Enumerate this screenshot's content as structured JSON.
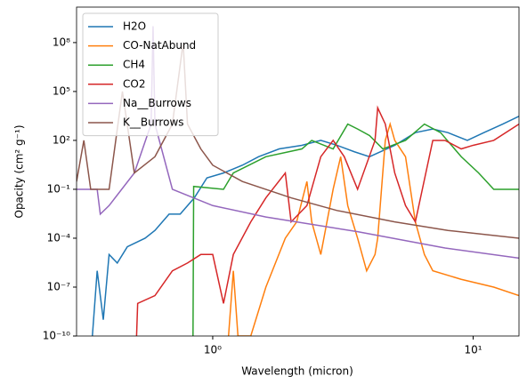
{
  "chart_data": {
    "type": "line",
    "xlabel": "Wavelength (micron)",
    "ylabel": "Opacity (cm² g⁻¹)",
    "xscale": "log",
    "yscale": "log",
    "xlim": [
      0.3,
      15
    ],
    "ylim": [
      1e-10,
      15000000000.0
    ],
    "xticks": [
      {
        "value": 1,
        "label": "10⁰"
      },
      {
        "value": 10,
        "label": "10¹"
      }
    ],
    "yticks": [
      {
        "value": 1e-10,
        "label": "10⁻¹⁰"
      },
      {
        "value": 1e-07,
        "label": "10⁻⁷"
      },
      {
        "value": 0.0001,
        "label": "10⁻⁴"
      },
      {
        "value": 0.1,
        "label": "10⁻¹"
      },
      {
        "value": 100,
        "label": "10²"
      },
      {
        "value": 100000,
        "label": "10⁵"
      },
      {
        "value": 100000000,
        "label": "10⁸"
      }
    ],
    "legend": "upper left",
    "series": [
      {
        "name": "H2O",
        "color": "#1f77b4",
        "x": [
          0.345,
          0.36,
          0.38,
          0.4,
          0.43,
          0.47,
          0.55,
          0.6,
          0.68,
          0.75,
          0.85,
          0.95,
          1.1,
          1.3,
          1.5,
          1.8,
          2.2,
          2.6,
          3.0,
          3.5,
          4.0,
          5.0,
          6.0,
          7.0,
          8.0,
          9.5,
          11,
          13,
          15
        ],
        "values": [
          1e-10,
          1e-06,
          1e-09,
          1e-05,
          3e-06,
          3e-05,
          0.0001,
          0.0003,
          0.003,
          0.003,
          0.03,
          0.5,
          1,
          3,
          10,
          30,
          50,
          100,
          50,
          20,
          10,
          50,
          300,
          500,
          300,
          100,
          300,
          1000,
          3000
        ]
      },
      {
        "name": "CO-NatAbund",
        "color": "#ff7f0e",
        "x": [
          1.15,
          1.2,
          1.25,
          1.4,
          1.6,
          1.9,
          2.1,
          2.3,
          2.4,
          2.6,
          2.9,
          3.1,
          3.3,
          3.6,
          3.9,
          4.2,
          4.3,
          4.6,
          4.8,
          5.0,
          5.5,
          6.0,
          6.5,
          7,
          9,
          12,
          15
        ],
        "values": [
          1e-10,
          1e-06,
          1e-10,
          1e-10,
          1e-07,
          0.0001,
          0.001,
          0.3,
          0.001,
          1e-05,
          0.1,
          10,
          0.01,
          0.0001,
          1e-06,
          1e-05,
          0.0001,
          100,
          1000,
          100,
          10,
          0.001,
          1e-05,
          1e-06,
          3e-07,
          1e-07,
          3e-08
        ]
      },
      {
        "name": "CH4",
        "color": "#2ca02c",
        "x": [
          0.84,
          0.845,
          1.1,
          1.2,
          1.6,
          2.2,
          2.4,
          2.9,
          3.3,
          3.6,
          4.0,
          4.5,
          5.5,
          6.5,
          7.5,
          9,
          10.5,
          12,
          15
        ],
        "values": [
          1e-10,
          0.15,
          0.1,
          1,
          10,
          30,
          100,
          30,
          1000,
          500,
          200,
          30,
          100,
          1000,
          300,
          10,
          1,
          0.1,
          0.1
        ]
      },
      {
        "name": "CO2",
        "color": "#d62728",
        "x": [
          0.51,
          0.515,
          0.6,
          0.7,
          0.8,
          0.9,
          1.0,
          1.1,
          1.2,
          1.4,
          1.6,
          1.9,
          2.0,
          2.3,
          2.6,
          2.9,
          3.2,
          3.6,
          4.2,
          4.3,
          4.6,
          5,
          5.5,
          6,
          7,
          7.8,
          9,
          10,
          12,
          15
        ],
        "values": [
          1e-10,
          1e-08,
          3e-08,
          1e-06,
          3e-06,
          1e-05,
          1e-05,
          1e-08,
          1e-05,
          0.001,
          0.03,
          1,
          0.001,
          0.01,
          10,
          100,
          10,
          0.1,
          100,
          10000,
          1000,
          1,
          0.01,
          0.001,
          100,
          100,
          30,
          50,
          100,
          1000
        ]
      },
      {
        "name": "Na__Burrows",
        "color": "#9467bd",
        "x": [
          0.3,
          0.36,
          0.37,
          0.4,
          0.5,
          0.58,
          0.59,
          0.6,
          0.7,
          1.0,
          1.6,
          3.6,
          7.8,
          15
        ],
        "values": [
          0.1,
          0.1,
          0.003,
          0.01,
          1,
          1000,
          1000000000.0,
          1000,
          0.1,
          0.01,
          0.002,
          0.00025,
          2.5e-05,
          6e-06
        ]
      },
      {
        "name": "K__Burrows",
        "color": "#8c564b",
        "x": [
          0.3,
          0.32,
          0.34,
          0.4,
          0.45,
          0.5,
          0.6,
          0.7,
          0.77,
          0.8,
          0.9,
          1.0,
          1.3,
          2,
          3,
          5,
          8,
          15
        ],
        "values": [
          0.3,
          100,
          0.1,
          0.1,
          100000,
          1,
          10,
          1000,
          100000000,
          1000,
          30,
          3,
          0.3,
          0.03,
          0.005,
          0.001,
          0.0003,
          0.0001
        ]
      }
    ]
  }
}
